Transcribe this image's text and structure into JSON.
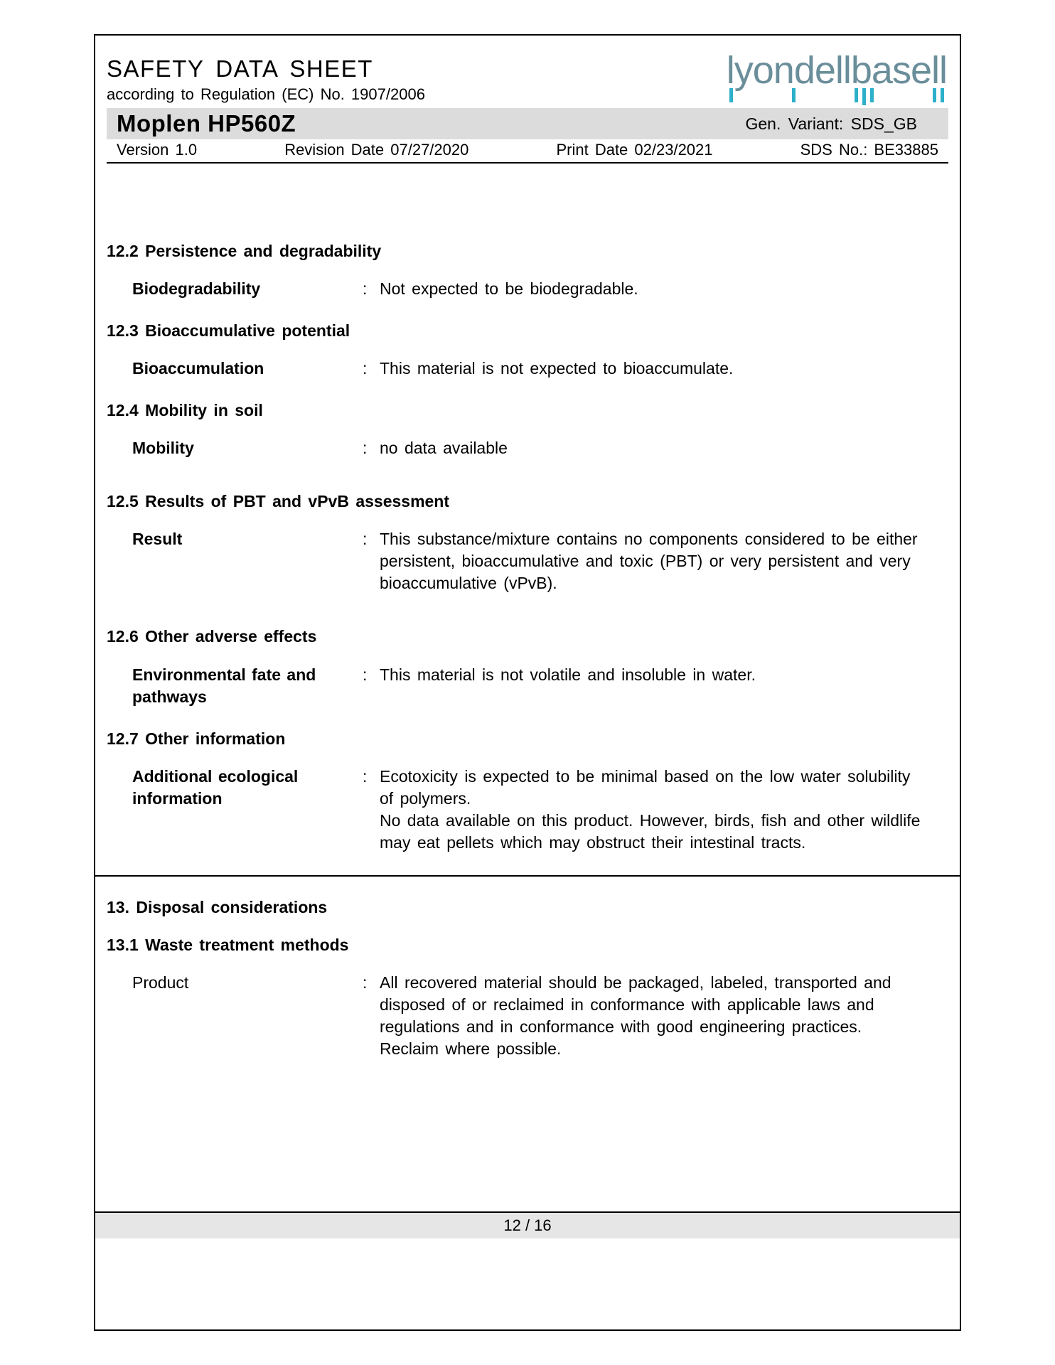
{
  "colors": {
    "frame_border": "#000000",
    "bar_bg": "#dcdcdc",
    "footer_bg": "#e6e6e6",
    "logo_text": "#6a8e9a",
    "logo_tick": "#2db0c9",
    "text": "#000000",
    "background": "#ffffff"
  },
  "fonts": {
    "body_size_pt": 17,
    "title_size_pt": 25,
    "product_size_pt": 25,
    "logo_size_pt": 41
  },
  "header": {
    "title": "SAFETY  DATA  SHEET",
    "regulation": "according to Regulation (EC) No. 1907/2006",
    "logo_text": "lyondellbasell",
    "product_name": "Moplen HP560Z",
    "variant": "Gen. Variant:  SDS_GB",
    "version": "Version 1.0",
    "revision": "Revision  Date 07/27/2020",
    "print_date": "Print Date 02/23/2021",
    "sds_no": "SDS No.:  BE33885"
  },
  "sections": [
    {
      "heading": "12.2 Persistence and degradability",
      "rows": [
        {
          "label": "Biodegradability",
          "value": "Not expected to be biodegradable.",
          "bold": true
        }
      ]
    },
    {
      "heading": "12.3 Bioaccumulative potential",
      "rows": [
        {
          "label": "Bioaccumulation",
          "value": "This material is not expected to bioaccumulate.",
          "bold": true
        }
      ]
    },
    {
      "heading": "12.4 Mobility in soil",
      "rows": [
        {
          "label": "Mobility",
          "value": "no data available",
          "bold": true
        }
      ]
    },
    {
      "heading": "12.5 Results of PBT and vPvB assessment",
      "rows": [
        {
          "label": "Result",
          "value": "This substance/mixture contains no components considered to be either persistent, bioaccumulative and toxic (PBT) or very persistent and very bioaccumulative (vPvB).",
          "bold": true
        }
      ]
    },
    {
      "heading": "12.6 Other adverse effects",
      "rows": [
        {
          "label": "Environmental fate and pathways",
          "value": "This material is not volatile and insoluble in water.",
          "bold": true
        }
      ]
    },
    {
      "heading": "12.7 Other information",
      "rows": [
        {
          "label": "Additional ecological information",
          "value": "Ecotoxicity is expected to be minimal based on the low water solubility of polymers.\nNo data available on this product.  However, birds, fish and other wildlife may eat pellets which may obstruct their intestinal tracts.",
          "bold": true
        }
      ]
    }
  ],
  "section13": {
    "heading": "13. Disposal  considerations",
    "sub_heading": "13.1 Waste treatment methods",
    "rows": [
      {
        "label": "Product",
        "value": "All recovered material should be packaged, labeled, transported and disposed of or reclaimed in conformance with applicable laws and regulations and in conformance with good engineering practices. Reclaim where possible.",
        "bold": false
      }
    ]
  },
  "footer": {
    "page": "12 / 16"
  }
}
